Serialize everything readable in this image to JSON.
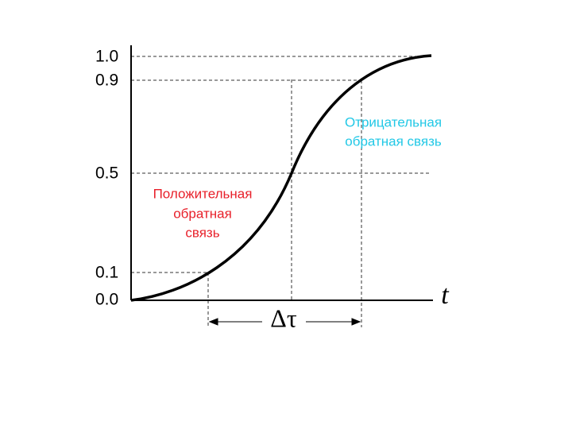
{
  "y_labels": [
    "1.0",
    "0.9",
    "0.5",
    "0.1",
    "0.0"
  ],
  "x_axis_label": "t",
  "interval_label": "Δτ",
  "positive_feedback": [
    "Положительная",
    "обратная",
    "связь"
  ],
  "negative_feedback": [
    "Отрицательная",
    "обратная связь"
  ]
}
